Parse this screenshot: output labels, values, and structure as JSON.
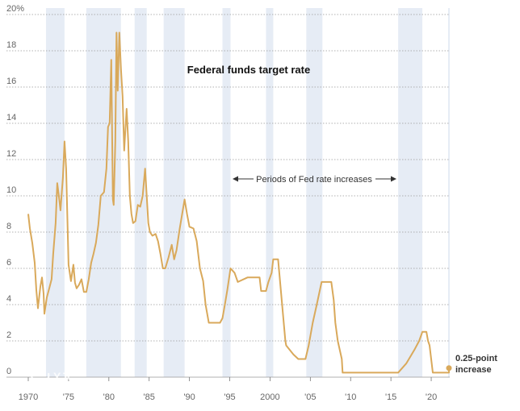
{
  "chart_data": {
    "type": "line",
    "title": "Federal funds target rate",
    "annotation": "Periods of Fed rate increases",
    "end_label_line1": "0.25-point",
    "end_label_line2": "increase",
    "watermark": "YJC",
    "y_ticks": [
      {
        "value": 0,
        "label": "0"
      },
      {
        "value": 2,
        "label": "2"
      },
      {
        "value": 4,
        "label": "4"
      },
      {
        "value": 6,
        "label": "6"
      },
      {
        "value": 8,
        "label": "8"
      },
      {
        "value": 10,
        "label": "10"
      },
      {
        "value": 12,
        "label": "12"
      },
      {
        "value": 14,
        "label": "14"
      },
      {
        "value": 16,
        "label": "16"
      },
      {
        "value": 18,
        "label": "18"
      },
      {
        "value": 20,
        "label": "20%"
      }
    ],
    "x_ticks": [
      {
        "value": 1970,
        "label": "1970"
      },
      {
        "value": 1975,
        "label": "'75"
      },
      {
        "value": 1980,
        "label": "'80"
      },
      {
        "value": 1985,
        "label": "'85"
      },
      {
        "value": 1990,
        "label": "'90"
      },
      {
        "value": 1995,
        "label": "'95"
      },
      {
        "value": 2000,
        "label": "2000"
      },
      {
        "value": 2005,
        "label": "'05"
      },
      {
        "value": 2010,
        "label": "'10"
      },
      {
        "value": 2015,
        "label": "'15"
      },
      {
        "value": 2020,
        "label": "'20"
      }
    ],
    "xlim": [
      1970,
      2022.3
    ],
    "ylim": [
      0,
      20
    ],
    "grid": "horizontal-dotted",
    "colors": {
      "line": "#d9a95b",
      "shade": "#e6ecf5",
      "grid": "#999999",
      "dot": "#d9a95b"
    },
    "shaded_periods": [
      [
        1972.2,
        1974.5
      ],
      [
        1977.2,
        1981.5
      ],
      [
        1983.2,
        1984.7
      ],
      [
        1986.8,
        1989.4
      ],
      [
        1994.1,
        1995.1
      ],
      [
        1999.5,
        2000.4
      ],
      [
        2004.5,
        2006.5
      ],
      [
        2015.9,
        2018.9
      ],
      [
        2022.1,
        2022.3
      ]
    ],
    "series": [
      {
        "points": [
          [
            1970.0,
            9.0
          ],
          [
            1970.2,
            8.2
          ],
          [
            1970.5,
            7.4
          ],
          [
            1970.8,
            6.3
          ],
          [
            1971.0,
            4.8
          ],
          [
            1971.2,
            3.8
          ],
          [
            1971.5,
            5.0
          ],
          [
            1971.7,
            5.5
          ],
          [
            1971.9,
            4.6
          ],
          [
            1972.0,
            3.5
          ],
          [
            1972.3,
            4.4
          ],
          [
            1972.6,
            4.9
          ],
          [
            1972.9,
            5.4
          ],
          [
            1973.1,
            6.8
          ],
          [
            1973.4,
            8.5
          ],
          [
            1973.6,
            10.7
          ],
          [
            1973.8,
            10.0
          ],
          [
            1974.0,
            9.2
          ],
          [
            1974.3,
            11.0
          ],
          [
            1974.5,
            13.0
          ],
          [
            1974.7,
            11.5
          ],
          [
            1975.0,
            6.2
          ],
          [
            1975.3,
            5.3
          ],
          [
            1975.6,
            6.2
          ],
          [
            1975.8,
            5.2
          ],
          [
            1976.0,
            4.9
          ],
          [
            1976.3,
            5.1
          ],
          [
            1976.6,
            5.4
          ],
          [
            1976.9,
            4.7
          ],
          [
            1977.2,
            4.7
          ],
          [
            1977.5,
            5.4
          ],
          [
            1977.8,
            6.3
          ],
          [
            1978.1,
            6.8
          ],
          [
            1978.4,
            7.4
          ],
          [
            1978.7,
            8.4
          ],
          [
            1979.0,
            10.0
          ],
          [
            1979.4,
            10.2
          ],
          [
            1979.7,
            11.5
          ],
          [
            1979.9,
            13.8
          ],
          [
            1980.1,
            14.0
          ],
          [
            1980.3,
            17.5
          ],
          [
            1980.5,
            9.8
          ],
          [
            1980.6,
            9.5
          ],
          [
            1980.8,
            13.0
          ],
          [
            1980.95,
            19.0
          ],
          [
            1981.1,
            15.8
          ],
          [
            1981.3,
            19.0
          ],
          [
            1981.5,
            17.0
          ],
          [
            1981.7,
            15.5
          ],
          [
            1981.9,
            12.5
          ],
          [
            1982.2,
            14.8
          ],
          [
            1982.4,
            13.0
          ],
          [
            1982.6,
            10.0
          ],
          [
            1982.8,
            9.0
          ],
          [
            1983.0,
            8.5
          ],
          [
            1983.3,
            8.6
          ],
          [
            1983.6,
            9.5
          ],
          [
            1983.9,
            9.4
          ],
          [
            1984.2,
            10.0
          ],
          [
            1984.5,
            11.5
          ],
          [
            1984.7,
            10.0
          ],
          [
            1984.9,
            8.5
          ],
          [
            1985.1,
            8.0
          ],
          [
            1985.4,
            7.8
          ],
          [
            1985.8,
            7.9
          ],
          [
            1986.1,
            7.5
          ],
          [
            1986.4,
            6.8
          ],
          [
            1986.7,
            6.0
          ],
          [
            1987.0,
            6.0
          ],
          [
            1987.4,
            6.6
          ],
          [
            1987.8,
            7.3
          ],
          [
            1988.1,
            6.5
          ],
          [
            1988.4,
            7.0
          ],
          [
            1988.8,
            8.2
          ],
          [
            1989.1,
            9.0
          ],
          [
            1989.4,
            9.8
          ],
          [
            1989.7,
            9.0
          ],
          [
            1990.0,
            8.3
          ],
          [
            1990.5,
            8.2
          ],
          [
            1990.9,
            7.5
          ],
          [
            1991.3,
            6.0
          ],
          [
            1991.7,
            5.3
          ],
          [
            1992.0,
            4.0
          ],
          [
            1992.4,
            3.0
          ],
          [
            1993.0,
            3.0
          ],
          [
            1993.8,
            3.0
          ],
          [
            1994.1,
            3.25
          ],
          [
            1994.4,
            4.0
          ],
          [
            1994.7,
            4.8
          ],
          [
            1995.1,
            6.0
          ],
          [
            1995.6,
            5.75
          ],
          [
            1996.0,
            5.25
          ],
          [
            1997.2,
            5.5
          ],
          [
            1998.7,
            5.5
          ],
          [
            1998.9,
            4.75
          ],
          [
            1999.5,
            4.75
          ],
          [
            1999.8,
            5.25
          ],
          [
            2000.2,
            5.75
          ],
          [
            2000.4,
            6.5
          ],
          [
            2001.0,
            6.5
          ],
          [
            2001.3,
            5.0
          ],
          [
            2001.6,
            3.5
          ],
          [
            2001.9,
            2.0
          ],
          [
            2002.0,
            1.75
          ],
          [
            2002.9,
            1.25
          ],
          [
            2003.5,
            1.0
          ],
          [
            2004.4,
            1.0
          ],
          [
            2004.8,
            1.75
          ],
          [
            2005.3,
            3.0
          ],
          [
            2005.8,
            4.0
          ],
          [
            2006.4,
            5.25
          ],
          [
            2007.6,
            5.25
          ],
          [
            2007.9,
            4.25
          ],
          [
            2008.1,
            3.0
          ],
          [
            2008.4,
            2.0
          ],
          [
            2008.9,
            1.0
          ],
          [
            2009.0,
            0.25
          ],
          [
            2015.9,
            0.25
          ],
          [
            2016.9,
            0.75
          ],
          [
            2017.9,
            1.5
          ],
          [
            2018.5,
            2.0
          ],
          [
            2018.9,
            2.5
          ],
          [
            2019.4,
            2.5
          ],
          [
            2019.6,
            2.0
          ],
          [
            2019.8,
            1.75
          ],
          [
            2020.2,
            0.25
          ],
          [
            2022.2,
            0.25
          ],
          [
            2022.2,
            0.5
          ]
        ]
      }
    ]
  }
}
